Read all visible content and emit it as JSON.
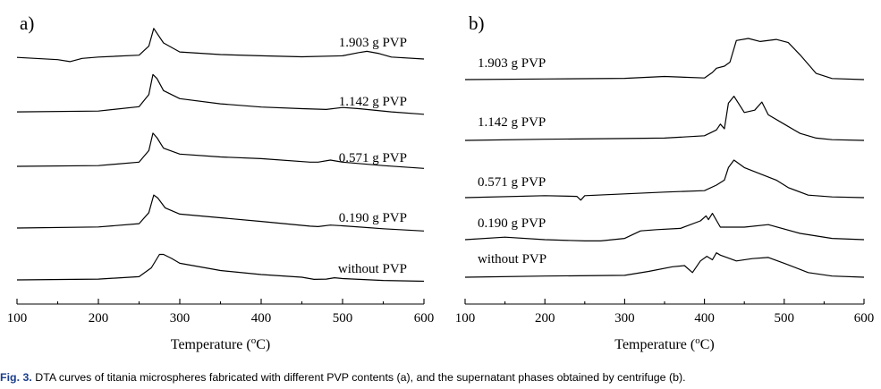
{
  "chart_data": [
    {
      "type": "line",
      "panel_label": "a)",
      "xlabel": "Temperature (°C)",
      "xlabel_base": "Temperature (",
      "xlabel_unit": "C)",
      "xlim": [
        100,
        600
      ],
      "xticks": [
        100,
        200,
        300,
        400,
        500,
        600
      ],
      "yaxis_visible": false,
      "series": [
        {
          "name": "1.903 g PVP",
          "x": [
            100,
            150,
            165,
            180,
            200,
            250,
            262,
            268,
            272,
            280,
            300,
            350,
            400,
            450,
            500,
            520,
            530,
            545,
            560,
            600
          ],
          "y": [
            0.05,
            -0.02,
            -0.08,
            0.02,
            0.06,
            0.12,
            0.4,
            0.95,
            0.8,
            0.5,
            0.22,
            0.14,
            0.1,
            0.07,
            0.1,
            0.2,
            0.24,
            0.17,
            0.06,
            0.0
          ]
        },
        {
          "name": "1.142 g PVP",
          "x": [
            100,
            200,
            250,
            262,
            267,
            272,
            280,
            300,
            350,
            400,
            450,
            480,
            500,
            520,
            560,
            600
          ],
          "y": [
            0.02,
            0.04,
            0.15,
            0.45,
            0.95,
            0.85,
            0.55,
            0.35,
            0.22,
            0.14,
            0.1,
            0.08,
            0.13,
            0.1,
            0.02,
            -0.04
          ]
        },
        {
          "name": "0.571 g PVP",
          "x": [
            100,
            200,
            250,
            262,
            267,
            272,
            280,
            300,
            350,
            400,
            460,
            470,
            485,
            500,
            550,
            600
          ],
          "y": [
            0.0,
            0.02,
            0.12,
            0.45,
            0.95,
            0.82,
            0.52,
            0.35,
            0.27,
            0.22,
            0.12,
            0.12,
            0.18,
            0.12,
            0.02,
            -0.06
          ]
        },
        {
          "name": "0.190 g PVP",
          "x": [
            100,
            200,
            250,
            262,
            268,
            273,
            282,
            300,
            350,
            400,
            460,
            470,
            485,
            500,
            550,
            600
          ],
          "y": [
            0.0,
            0.03,
            0.12,
            0.42,
            0.9,
            0.82,
            0.55,
            0.38,
            0.28,
            0.18,
            0.05,
            0.04,
            0.08,
            0.06,
            -0.02,
            -0.08
          ]
        },
        {
          "name": "without PVP",
          "x": [
            100,
            200,
            250,
            265,
            275,
            280,
            290,
            300,
            350,
            400,
            450,
            465,
            480,
            490,
            500,
            550,
            600
          ],
          "y": [
            0.0,
            0.03,
            0.12,
            0.45,
            0.95,
            0.95,
            0.8,
            0.62,
            0.35,
            0.2,
            0.1,
            0.02,
            0.03,
            0.08,
            0.05,
            -0.02,
            -0.05
          ]
        }
      ]
    },
    {
      "type": "line",
      "panel_label": "b)",
      "xlabel": "Temperature (°C)",
      "xlabel_base": "Temperature (",
      "xlabel_unit": "C)",
      "xlim": [
        100,
        600
      ],
      "xticks": [
        100,
        200,
        300,
        400,
        500,
        600
      ],
      "yaxis_visible": false,
      "series": [
        {
          "name": "1.903 g PVP",
          "x": [
            100,
            200,
            300,
            350,
            400,
            410,
            415,
            425,
            432,
            440,
            455,
            470,
            490,
            505,
            520,
            540,
            560,
            600
          ],
          "y": [
            0.0,
            0.03,
            0.06,
            0.15,
            0.08,
            0.35,
            0.55,
            0.65,
            0.85,
            1.9,
            2.0,
            1.85,
            1.95,
            1.8,
            1.2,
            0.3,
            0.05,
            0.0
          ]
        },
        {
          "name": "1.142 g PVP",
          "x": [
            100,
            200,
            300,
            350,
            400,
            415,
            420,
            425,
            430,
            437,
            450,
            463,
            472,
            480,
            500,
            520,
            540,
            560,
            600
          ],
          "y": [
            0.0,
            0.05,
            0.08,
            0.1,
            0.2,
            0.45,
            0.7,
            0.5,
            1.6,
            1.9,
            1.2,
            1.3,
            1.65,
            1.1,
            0.7,
            0.3,
            0.1,
            0.03,
            0.0
          ]
        },
        {
          "name": "0.571 g PVP",
          "x": [
            100,
            200,
            240,
            245,
            250,
            300,
            350,
            400,
            415,
            425,
            430,
            437,
            450,
            470,
            490,
            505,
            530,
            560,
            600
          ],
          "y": [
            0.0,
            0.08,
            0.05,
            -0.1,
            0.08,
            0.15,
            0.22,
            0.28,
            0.5,
            0.7,
            1.2,
            1.5,
            1.2,
            0.95,
            0.7,
            0.4,
            0.1,
            0.03,
            0.0
          ]
        },
        {
          "name": "0.190 g PVP",
          "x": [
            100,
            150,
            200,
            250,
            270,
            300,
            320,
            340,
            370,
            395,
            402,
            405,
            410,
            420,
            450,
            480,
            520,
            560,
            600
          ],
          "y": [
            0.0,
            0.1,
            0.0,
            -0.05,
            -0.05,
            0.05,
            0.35,
            0.4,
            0.45,
            0.75,
            0.95,
            0.8,
            1.05,
            0.5,
            0.5,
            0.6,
            0.25,
            0.05,
            0.0
          ]
        },
        {
          "name": "without PVP",
          "x": [
            100,
            200,
            300,
            330,
            360,
            375,
            385,
            395,
            403,
            410,
            415,
            420,
            440,
            460,
            480,
            500,
            530,
            560,
            600
          ],
          "y": [
            0.0,
            0.05,
            0.08,
            0.25,
            0.45,
            0.5,
            0.2,
            0.7,
            0.9,
            0.75,
            1.05,
            0.95,
            0.7,
            0.8,
            0.85,
            0.6,
            0.2,
            0.05,
            0.0
          ]
        }
      ]
    }
  ],
  "caption": {
    "label": "Fig. 3.",
    "text": " DTA curves of titania microspheres fabricated with different PVP contents (a), and the supernatant phases obtained by centrifuge (b)."
  }
}
